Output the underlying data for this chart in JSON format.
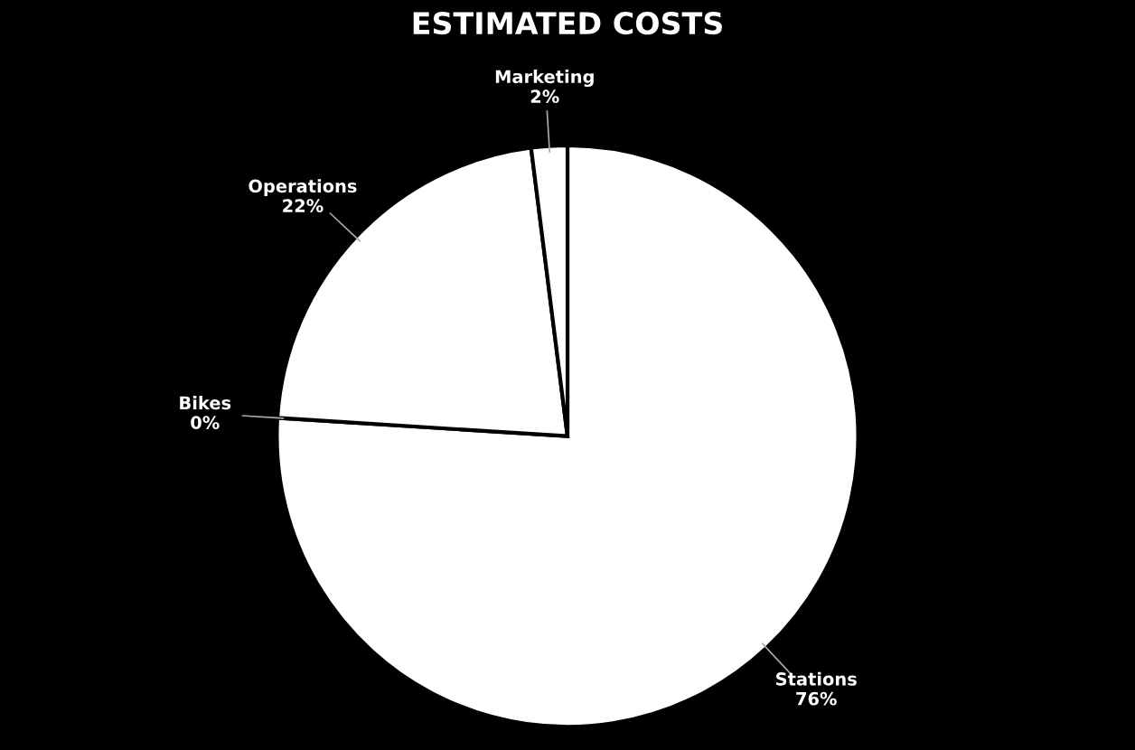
{
  "chart_data": {
    "type": "pie",
    "title": "ESTIMATED COSTS",
    "categories": [
      "Stations",
      "Bikes",
      "Operations",
      "Marketing"
    ],
    "values": [
      76,
      0,
      22,
      2
    ],
    "value_labels": [
      "76%",
      "0%",
      "22%",
      "2%"
    ],
    "colors": [
      "#ffffff",
      "#ffffff",
      "#ffffff",
      "#ffffff"
    ],
    "legend": false
  }
}
